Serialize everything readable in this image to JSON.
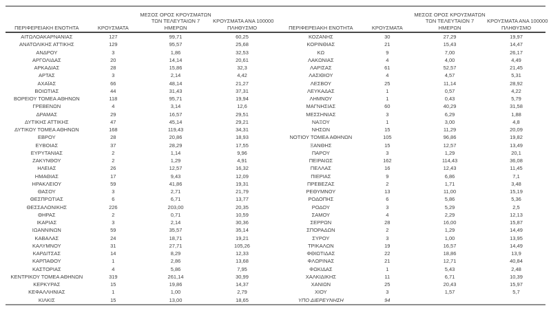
{
  "page": {
    "background": "#ffffff",
    "text_color": "#3f3f3f",
    "outer_border_color": "#8f8f8f",
    "header_rule_color": "#474747"
  },
  "headers": {
    "region": "ΠΕΡΙΦΕΡΕΙΑΚΗ ΕΝΟΤΗΤΑ",
    "cases": "ΚΡΟΥΣΜΑΤΑ",
    "avg7_lines": [
      "ΜΕΣΟΣ ΟΡΟΣ ΚΡΟΥΣΜΑΤΩΝ",
      "ΤΩΝ ΤΕΛΕΥΤΑΙΩΝ 7",
      "ΗΜΕΡΩΝ"
    ],
    "per100k_lines": [
      "ΚΡΟΥΣΜΑΤΑ ΑΝΑ 100000",
      "ΠΛΗΘΥΣΜΟ"
    ]
  },
  "under_investigation_label": "ΥΠΟ ΔΙΕΡΕΥΝΗΣΗ",
  "left_table": {
    "rows": [
      [
        "ΑΙΤΩΛΟΑΚΑΡΝΑΝΙΑΣ",
        "127",
        "99,71",
        "60,25"
      ],
      [
        "ΑΝΑΤΟΛΙΚΗΣ ΑΤΤΙΚΗΣ",
        "129",
        "95,57",
        "25,68"
      ],
      [
        "ΑΝΔΡΟΥ",
        "3",
        "1,86",
        "32,53"
      ],
      [
        "ΑΡΓΟΛΙΔΑΣ",
        "20",
        "14,14",
        "20,61"
      ],
      [
        "ΑΡΚΑΔΙΑΣ",
        "28",
        "15,86",
        "32,3"
      ],
      [
        "ΑΡΤΑΣ",
        "3",
        "2,14",
        "4,42"
      ],
      [
        "ΑΧΑΪΑΣ",
        "66",
        "48,14",
        "21,27"
      ],
      [
        "ΒΟΙΩΤΙΑΣ",
        "44",
        "31,43",
        "37,31"
      ],
      [
        "ΒΟΡΕΙΟΥ ΤΟΜΕΑ ΑΘΗΝΩΝ",
        "118",
        "95,71",
        "19,94"
      ],
      [
        "ΓΡΕΒΕΝΩΝ",
        "4",
        "3,14",
        "12,6"
      ],
      [
        "ΔΡΑΜΑΣ",
        "29",
        "16,57",
        "29,51"
      ],
      [
        "ΔΥΤΙΚΗΣ ΑΤΤΙΚΗΣ",
        "47",
        "45,14",
        "29,21"
      ],
      [
        "ΔΥΤΙΚΟΥ ΤΟΜΕΑ ΑΘΗΝΩΝ",
        "168",
        "119,43",
        "34,31"
      ],
      [
        "ΕΒΡΟΥ",
        "28",
        "20,86",
        "18,93"
      ],
      [
        "ΕΥΒΟΙΑΣ",
        "37",
        "28,29",
        "17,55"
      ],
      [
        "ΕΥΡΥΤΑΝΙΑΣ",
        "2",
        "1,14",
        "9,96"
      ],
      [
        "ΖΑΚΥΝΘΟΥ",
        "2",
        "1,29",
        "4,91"
      ],
      [
        "ΗΛΕΙΑΣ",
        "26",
        "12,57",
        "16,32"
      ],
      [
        "ΗΜΑΘΙΑΣ",
        "17",
        "9,43",
        "12,09"
      ],
      [
        "ΗΡΑΚΛΕΙΟΥ",
        "59",
        "41,86",
        "19,31"
      ],
      [
        "ΘΑΣΟΥ",
        "3",
        "2,71",
        "21,79"
      ],
      [
        "ΘΕΣΠΡΩΤΙΑΣ",
        "6",
        "6,71",
        "13,77"
      ],
      [
        "ΘΕΣΣΑΛΟΝΙΚΗΣ",
        "226",
        "203,00",
        "20,35"
      ],
      [
        "ΘΗΡΑΣ",
        "2",
        "0,71",
        "10,59"
      ],
      [
        "ΙΚΑΡΙΑΣ",
        "3",
        "2,14",
        "30,36"
      ],
      [
        "ΙΩΑΝΝΙΝΩΝ",
        "59",
        "35,57",
        "35,14"
      ],
      [
        "ΚΑΒΑΛΑΣ",
        "24",
        "18,71",
        "19,21"
      ],
      [
        "ΚΑΛΥΜΝΟΥ",
        "31",
        "27,71",
        "105,26"
      ],
      [
        "ΚΑΡΔΙΤΣΑΣ",
        "14",
        "8,29",
        "12,33"
      ],
      [
        "ΚΑΡΠΑΘΟΥ",
        "1",
        "2,86",
        "13,68"
      ],
      [
        "ΚΑΣΤΟΡΙΑΣ",
        "4",
        "5,86",
        "7,95"
      ],
      [
        "ΚΕΝΤΡΙΚΟΥ ΤΟΜΕΑ ΑΘΗΝΩΝ",
        "319",
        "261,14",
        "30,99"
      ],
      [
        "ΚΕΡΚΥΡΑΣ",
        "15",
        "19,86",
        "14,37"
      ],
      [
        "ΚΕΦΑΛΛΗΝΙΑΣ",
        "1",
        "1,00",
        "2,79"
      ],
      [
        "ΚΙΛΚΙΣ",
        "15",
        "13,00",
        "18,65"
      ]
    ]
  },
  "right_table": {
    "rows": [
      [
        "ΚΟΖΑΝΗΣ",
        "30",
        "27,29",
        "19,97"
      ],
      [
        "ΚΟΡΙΝΘΙΑΣ",
        "21",
        "15,43",
        "14,47"
      ],
      [
        "ΚΩ",
        "9",
        "7,00",
        "26,17"
      ],
      [
        "ΛΑΚΩΝΙΑΣ",
        "4",
        "4,00",
        "4,49"
      ],
      [
        "ΛΑΡΙΣΑΣ",
        "61",
        "52,57",
        "21,45"
      ],
      [
        "ΛΑΣΙΘΙΟΥ",
        "4",
        "4,57",
        "5,31"
      ],
      [
        "ΛΕΣΒΟΥ",
        "25",
        "11,14",
        "28,92"
      ],
      [
        "ΛΕΥΚΑΔΑΣ",
        "1",
        "0,57",
        "4,22"
      ],
      [
        "ΛΗΜΝΟΥ",
        "1",
        "0,43",
        "5,79"
      ],
      [
        "ΜΑΓΝΗΣΙΑΣ",
        "60",
        "40,29",
        "31,58"
      ],
      [
        "ΜΕΣΣΗΝΙΑΣ",
        "3",
        "6,29",
        "1,88"
      ],
      [
        "ΝΑΞΟΥ",
        "1",
        "3,00",
        "4,8"
      ],
      [
        "ΝΗΣΩΝ",
        "15",
        "11,29",
        "20,09"
      ],
      [
        "ΝΟΤΙΟΥ ΤΟΜΕΑ ΑΘΗΝΩΝ",
        "105",
        "96,86",
        "19,82"
      ],
      [
        "ΞΑΝΘΗΣ",
        "15",
        "12,57",
        "13,49"
      ],
      [
        "ΠΑΡΟΥ",
        "3",
        "1,29",
        "20,1"
      ],
      [
        "ΠΕΙΡΑΙΩΣ",
        "162",
        "114,43",
        "36,08"
      ],
      [
        "ΠΕΛΛΑΣ",
        "16",
        "12,43",
        "11,45"
      ],
      [
        "ΠΙΕΡΙΑΣ",
        "9",
        "6,86",
        "7,1"
      ],
      [
        "ΠΡΕΒΕΖΑΣ",
        "2",
        "1,71",
        "3,48"
      ],
      [
        "ΡΕΘΥΜΝΟΥ",
        "13",
        "11,00",
        "15,19"
      ],
      [
        "ΡΟΔΟΠΗΣ",
        "6",
        "5,86",
        "5,36"
      ],
      [
        "ΡΟΔΟΥ",
        "3",
        "5,29",
        "2,5"
      ],
      [
        "ΣΑΜΟΥ",
        "4",
        "2,29",
        "12,13"
      ],
      [
        "ΣΕΡΡΩΝ",
        "28",
        "16,00",
        "15,87"
      ],
      [
        "ΣΠΟΡΑΔΩΝ",
        "2",
        "1,29",
        "14,49"
      ],
      [
        "ΣΥΡΟΥ",
        "3",
        "1,00",
        "13,95"
      ],
      [
        "ΤΡΙΚΑΛΩΝ",
        "19",
        "16,57",
        "14,49"
      ],
      [
        "ΦΘΙΩΤΙΔΑΣ",
        "22",
        "18,86",
        "13,9"
      ],
      [
        "ΦΛΩΡΙΝΑΣ",
        "21",
        "12,71",
        "40,84"
      ],
      [
        "ΦΩΚΙΔΑΣ",
        "1",
        "5,43",
        "2,48"
      ],
      [
        "ΧΑΛΚΙΔΙΚΗΣ",
        "11",
        "6,71",
        "10,39"
      ],
      [
        "ΧΑΝΙΩΝ",
        "25",
        "20,43",
        "15,97"
      ],
      [
        "ΧΙΟΥ",
        "3",
        "1,57",
        "5,7"
      ],
      [
        "ΥΠΟ ΔΙΕΡΕΥΝΗΣΗ",
        "94",
        "",
        ""
      ]
    ]
  }
}
